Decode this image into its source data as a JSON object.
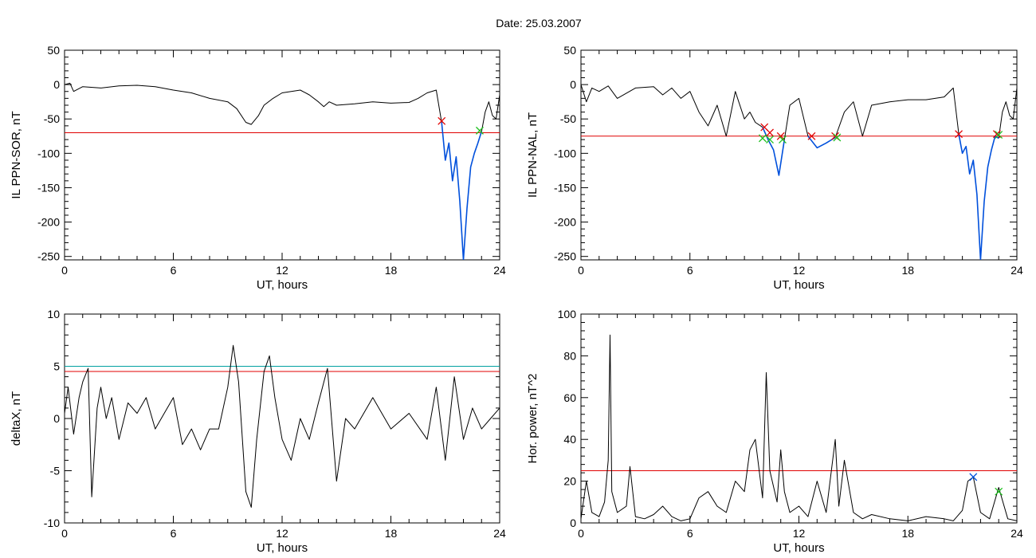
{
  "figure": {
    "title": "Date:  25.03.2007"
  },
  "chart_data": [
    {
      "id": "p1",
      "type": "line",
      "ylabel": "IL PPN-SOR, nT",
      "xlabel": "UT, hours",
      "xlim": [
        0,
        24
      ],
      "ylim": [
        -255,
        50
      ],
      "xticks": [
        0,
        6,
        12,
        18,
        24
      ],
      "yticks": [
        50,
        0,
        -50,
        -100,
        -150,
        -200,
        -250
      ],
      "threshold_lines": [
        {
          "y": -70,
          "color": "#e00000"
        }
      ],
      "series": [
        {
          "color": "#000000",
          "x": [
            0,
            0.3,
            0.5,
            1,
            2,
            3,
            4,
            5,
            6,
            7,
            8,
            9,
            9.5,
            10,
            10.3,
            10.7,
            11,
            11.5,
            12,
            12.5,
            13,
            13.5,
            14,
            14.3,
            14.6,
            15,
            16,
            17,
            18,
            19,
            19.5,
            20,
            20.5,
            20.8
          ],
          "y": [
            0,
            2,
            -10,
            -3,
            -5,
            -2,
            -1,
            -3,
            -8,
            -12,
            -20,
            -25,
            -35,
            -55,
            -58,
            -45,
            -30,
            -20,
            -12,
            -10,
            -8,
            -15,
            -25,
            -32,
            -25,
            -30,
            -28,
            -25,
            -27,
            -26,
            -20,
            -12,
            -8,
            -55
          ]
        },
        {
          "color": "#0050dc",
          "x": [
            20.8,
            21,
            21.2,
            21.4,
            21.6,
            21.8,
            22,
            22.2,
            22.4,
            22.6,
            22.8,
            23
          ],
          "y": [
            -55,
            -110,
            -85,
            -140,
            -105,
            -170,
            -255,
            -180,
            -120,
            -100,
            -85,
            -68
          ]
        },
        {
          "color": "#000000",
          "x": [
            23,
            23.2,
            23.4,
            23.6,
            23.8,
            24
          ],
          "y": [
            -68,
            -40,
            -25,
            -45,
            -50,
            -15
          ]
        }
      ],
      "markers": [
        {
          "x": 20.8,
          "y": -53,
          "color": "#e00000"
        },
        {
          "x": 22.9,
          "y": -67,
          "color": "#20c020"
        }
      ]
    },
    {
      "id": "p2",
      "type": "line",
      "ylabel": "IL PPN-NAL, nT",
      "xlabel": "UT, hours",
      "xlim": [
        0,
        24
      ],
      "ylim": [
        -255,
        50
      ],
      "xticks": [
        0,
        6,
        12,
        18,
        24
      ],
      "yticks": [
        50,
        0,
        -50,
        -100,
        -150,
        -200,
        -250
      ],
      "threshold_lines": [
        {
          "y": -75,
          "color": "#e00000"
        }
      ],
      "series": [
        {
          "color": "#000000",
          "x": [
            0,
            0.3,
            0.6,
            1,
            1.5,
            2,
            3,
            4,
            4.5,
            5,
            5.5,
            6,
            6.5,
            7,
            7.5,
            8,
            8.5,
            9,
            9.3,
            9.6,
            10
          ],
          "y": [
            0,
            -25,
            -5,
            -10,
            -2,
            -20,
            -5,
            -3,
            -15,
            -5,
            -20,
            -10,
            -40,
            -60,
            -30,
            -75,
            -10,
            -50,
            -40,
            -55,
            -62
          ]
        },
        {
          "color": "#0050dc",
          "x": [
            10,
            10.3,
            10.6,
            10.9,
            11.2
          ],
          "y": [
            -62,
            -80,
            -95,
            -132,
            -80
          ]
        },
        {
          "color": "#000000",
          "x": [
            11.2,
            11.5,
            12,
            12.5
          ],
          "y": [
            -80,
            -30,
            -20,
            -75
          ]
        },
        {
          "color": "#0050dc",
          "x": [
            12.5,
            13,
            13.5,
            14
          ],
          "y": [
            -75,
            -92,
            -85,
            -77
          ]
        },
        {
          "color": "#000000",
          "x": [
            14,
            14.5,
            15,
            15.5,
            16,
            17,
            18,
            19,
            20,
            20.5,
            20.8
          ],
          "y": [
            -77,
            -40,
            -25,
            -75,
            -30,
            -25,
            -22,
            -22,
            -18,
            -5,
            -72
          ]
        },
        {
          "color": "#0050dc",
          "x": [
            20.8,
            21,
            21.2,
            21.4,
            21.6,
            21.8,
            22,
            22.2,
            22.4,
            22.6,
            22.8,
            23
          ],
          "y": [
            -72,
            -100,
            -90,
            -130,
            -110,
            -160,
            -255,
            -170,
            -120,
            -95,
            -75,
            -78
          ]
        },
        {
          "color": "#000000",
          "x": [
            23,
            23.2,
            23.4,
            23.6,
            23.8,
            24
          ],
          "y": [
            -78,
            -40,
            -25,
            -45,
            -50,
            -5
          ]
        }
      ],
      "markers": [
        {
          "x": 10.1,
          "y": -62,
          "color": "#e00000"
        },
        {
          "x": 10.4,
          "y": -70,
          "color": "#e00000"
        },
        {
          "x": 11.0,
          "y": -75,
          "color": "#e00000"
        },
        {
          "x": 12.7,
          "y": -75,
          "color": "#e00000"
        },
        {
          "x": 14.0,
          "y": -75,
          "color": "#e00000"
        },
        {
          "x": 20.8,
          "y": -72,
          "color": "#e00000"
        },
        {
          "x": 22.9,
          "y": -72,
          "color": "#e00000"
        },
        {
          "x": 10.0,
          "y": -78,
          "color": "#20c020"
        },
        {
          "x": 10.4,
          "y": -80,
          "color": "#20c020"
        },
        {
          "x": 11.1,
          "y": -80,
          "color": "#20c020"
        },
        {
          "x": 14.1,
          "y": -77,
          "color": "#20c020"
        },
        {
          "x": 23.0,
          "y": -73,
          "color": "#20c020"
        }
      ]
    },
    {
      "id": "p3",
      "type": "line",
      "ylabel": "deltaX, nT",
      "xlabel": "UT, hours",
      "xlim": [
        0,
        24
      ],
      "ylim": [
        -10,
        10
      ],
      "xticks": [
        0,
        6,
        12,
        18,
        24
      ],
      "yticks": [
        10,
        5,
        0,
        -5,
        -10
      ],
      "threshold_lines": [
        {
          "y": 5,
          "color": "#00a0a0"
        },
        {
          "y": 4.5,
          "color": "#e00000"
        }
      ],
      "series": [
        {
          "color": "#000000",
          "x": [
            0,
            0.2,
            0.5,
            0.8,
            1,
            1.3,
            1.5,
            1.8,
            2,
            2.3,
            2.6,
            3,
            3.5,
            4,
            4.5,
            5,
            5.5,
            6,
            6.5,
            7,
            7.5,
            8,
            8.5,
            9,
            9.3,
            9.6,
            10,
            10.3,
            10.6,
            11,
            11.3,
            11.6,
            12,
            12.5,
            13,
            13.5,
            14,
            14.5,
            15,
            15.5,
            16,
            17,
            18,
            19,
            20,
            20.5,
            21,
            21.5,
            22,
            22.5,
            23,
            23.5,
            24
          ],
          "y": [
            0.5,
            3,
            -1.5,
            2,
            3.5,
            4.8,
            -7.5,
            1,
            3,
            0,
            2,
            -2,
            1.5,
            0.5,
            2,
            -1,
            0.5,
            2,
            -2.5,
            -1,
            -3,
            -1,
            -1,
            3,
            7,
            3.5,
            -7,
            -8.5,
            -2,
            4.5,
            6,
            2,
            -2,
            -4,
            0,
            -2,
            1.5,
            4.8,
            -6,
            0,
            -1,
            2,
            -1,
            0.5,
            -2,
            3,
            -4,
            4,
            -2,
            1,
            -1,
            0,
            1
          ]
        }
      ],
      "markers": []
    },
    {
      "id": "p4",
      "type": "line",
      "ylabel": "Hor. power, nT^2",
      "xlabel": "UT, hours",
      "xlim": [
        0,
        24
      ],
      "ylim": [
        0,
        100
      ],
      "xticks": [
        0,
        6,
        12,
        18,
        24
      ],
      "yticks": [
        100,
        80,
        60,
        40,
        20,
        0
      ],
      "threshold_lines": [
        {
          "y": 25,
          "color": "#e00000"
        }
      ],
      "series": [
        {
          "color": "#000000",
          "x": [
            0,
            0.3,
            0.6,
            1,
            1.3,
            1.5,
            1.6,
            1.7,
            2,
            2.5,
            2.7,
            3,
            3.5,
            4,
            4.5,
            5,
            5.5,
            6,
            6.5,
            7,
            7.5,
            8,
            8.5,
            9,
            9.3,
            9.6,
            10,
            10.2,
            10.4,
            10.8,
            11,
            11.2,
            11.5,
            12,
            12.5,
            13,
            13.5,
            14,
            14.2,
            14.5,
            15,
            15.5,
            16,
            17,
            18,
            19,
            20,
            20.5,
            21,
            21.3,
            21.6,
            22,
            22.5,
            23,
            23.5,
            24
          ],
          "y": [
            2,
            20,
            5,
            3,
            10,
            30,
            90,
            15,
            5,
            8,
            27,
            3,
            2,
            4,
            8,
            3,
            1,
            2,
            12,
            15,
            8,
            5,
            20,
            15,
            35,
            40,
            12,
            72,
            25,
            10,
            35,
            15,
            5,
            8,
            3,
            20,
            5,
            40,
            8,
            30,
            5,
            2,
            4,
            2,
            1,
            3,
            2,
            1,
            6,
            20,
            22,
            5,
            2,
            17,
            2,
            1
          ]
        }
      ],
      "markers": [
        {
          "x": 21.6,
          "y": 22,
          "color": "#0050dc"
        },
        {
          "x": 23.0,
          "y": 15,
          "color": "#20c020"
        }
      ]
    }
  ]
}
